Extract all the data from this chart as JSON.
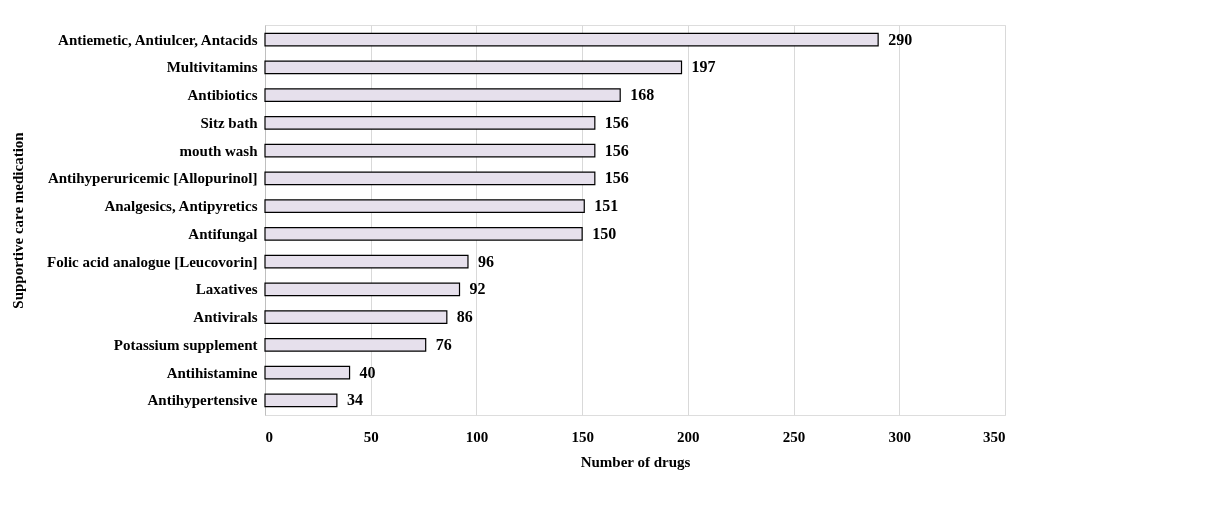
{
  "chart_data": {
    "type": "bar",
    "orientation": "horizontal",
    "xlabel": "Number of drugs",
    "ylabel": "Supportive care medication",
    "categories": [
      "Antiemetic, Antiulcer, Antacids",
      "Multivitamins",
      "Antibiotics",
      "Sitz bath",
      "mouth wash",
      "Antihyperuricemic [Allopurinol]",
      "Analgesics, Antipyretics",
      "Antifungal",
      "Folic acid analogue [Leucovorin]",
      "Laxatives",
      "Antivirals",
      "Potassium supplement",
      "Antihistamine",
      "Antihypertensive"
    ],
    "values": [
      290,
      197,
      168,
      156,
      156,
      156,
      151,
      150,
      96,
      92,
      86,
      76,
      40,
      34
    ],
    "color": "#e6e0ec",
    "xlim": [
      0,
      350
    ],
    "xticks": [
      0,
      50,
      100,
      150,
      200,
      250,
      300,
      350
    ],
    "grid": "x",
    "data_labels": true
  }
}
